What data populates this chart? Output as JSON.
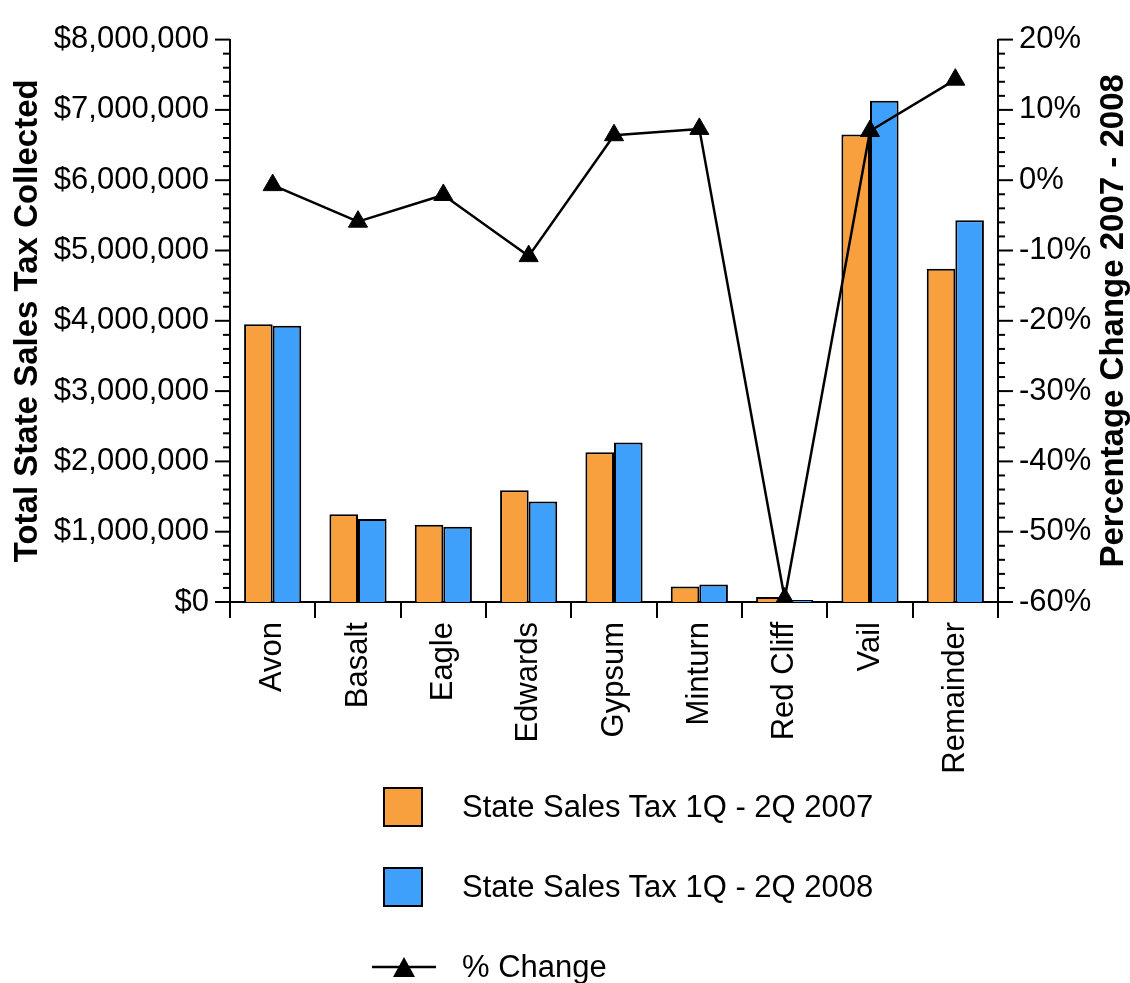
{
  "chart_data": {
    "type": "bar",
    "categories": [
      "Avon",
      "Basalt",
      "Eagle",
      "Edwards",
      "Gypsum",
      "Minturn",
      "Red Cliff",
      "Vail",
      "Remainder"
    ],
    "series": [
      {
        "name": "State Sales Tax 1Q - 2Q 2007",
        "color": "#f9a03e",
        "values": [
          3950000,
          1250000,
          1100000,
          1590000,
          2130000,
          220000,
          70000,
          6650000,
          4740000
        ]
      },
      {
        "name": "State Sales Tax 1Q - 2Q 2008",
        "color": "#3fa0fb",
        "values": [
          3930000,
          1180000,
          1070000,
          1430000,
          2270000,
          250000,
          30000,
          7130000,
          5430000
        ]
      },
      {
        "name": "% Change",
        "type": "line",
        "axis": "y2",
        "color": "#000000",
        "values": [
          -0.7,
          -5.9,
          -2.1,
          -10.8,
          6.4,
          7.3,
          -59.5,
          7.0,
          14.3
        ]
      }
    ],
    "ylabel": "Total State Sales Tax Collected",
    "y2label": "Percentage Change 2007 - 2008",
    "ylim": [
      0,
      8000000
    ],
    "yticks": [
      {
        "value": 0,
        "label": "$0"
      },
      {
        "value": 200000,
        "label": null
      },
      {
        "value": 400000,
        "label": null
      },
      {
        "value": 600000,
        "label": null
      },
      {
        "value": 800000,
        "label": null
      },
      {
        "value": 1000000,
        "label": "$1,000,000"
      },
      {
        "value": 1200000,
        "label": null
      },
      {
        "value": 1400000,
        "label": null
      },
      {
        "value": 1600000,
        "label": null
      },
      {
        "value": 1800000,
        "label": null
      },
      {
        "value": 2000000,
        "label": "$2,000,000"
      },
      {
        "value": 2200000,
        "label": null
      },
      {
        "value": 2400000,
        "label": null
      },
      {
        "value": 2600000,
        "label": null
      },
      {
        "value": 2800000,
        "label": null
      },
      {
        "value": 3000000,
        "label": "$3,000,000"
      },
      {
        "value": 3200000,
        "label": null
      },
      {
        "value": 3400000,
        "label": null
      },
      {
        "value": 3600000,
        "label": null
      },
      {
        "value": 3800000,
        "label": null
      },
      {
        "value": 4000000,
        "label": "$4,000,000"
      },
      {
        "value": 4200000,
        "label": null
      },
      {
        "value": 4400000,
        "label": null
      },
      {
        "value": 4600000,
        "label": null
      },
      {
        "value": 4800000,
        "label": null
      },
      {
        "value": 5000000,
        "label": "$5,000,000"
      },
      {
        "value": 5200000,
        "label": null
      },
      {
        "value": 5400000,
        "label": null
      },
      {
        "value": 5600000,
        "label": null
      },
      {
        "value": 5800000,
        "label": null
      },
      {
        "value": 6000000,
        "label": "$6,000,000"
      },
      {
        "value": 6200000,
        "label": null
      },
      {
        "value": 6400000,
        "label": null
      },
      {
        "value": 6600000,
        "label": null
      },
      {
        "value": 6800000,
        "label": null
      },
      {
        "value": 7000000,
        "label": "$7,000,000"
      },
      {
        "value": 7200000,
        "label": null
      },
      {
        "value": 7400000,
        "label": null
      },
      {
        "value": 7600000,
        "label": null
      },
      {
        "value": 7800000,
        "label": null
      },
      {
        "value": 8000000,
        "label": "$8,000,000"
      }
    ],
    "y2lim": [
      -60,
      20
    ],
    "y2ticks": [
      {
        "value": -60,
        "label": "-60%"
      },
      {
        "value": -58,
        "label": null
      },
      {
        "value": -56,
        "label": null
      },
      {
        "value": -54,
        "label": null
      },
      {
        "value": -52,
        "label": null
      },
      {
        "value": -50,
        "label": "-50%"
      },
      {
        "value": -48,
        "label": null
      },
      {
        "value": -46,
        "label": null
      },
      {
        "value": -44,
        "label": null
      },
      {
        "value": -42,
        "label": null
      },
      {
        "value": -40,
        "label": "-40%"
      },
      {
        "value": -38,
        "label": null
      },
      {
        "value": -36,
        "label": null
      },
      {
        "value": -34,
        "label": null
      },
      {
        "value": -32,
        "label": null
      },
      {
        "value": -30,
        "label": "-30%"
      },
      {
        "value": -28,
        "label": null
      },
      {
        "value": -26,
        "label": null
      },
      {
        "value": -24,
        "label": null
      },
      {
        "value": -22,
        "label": null
      },
      {
        "value": -20,
        "label": "-20%"
      },
      {
        "value": -18,
        "label": null
      },
      {
        "value": -16,
        "label": null
      },
      {
        "value": -14,
        "label": null
      },
      {
        "value": -12,
        "label": null
      },
      {
        "value": -10,
        "label": "-10%"
      },
      {
        "value": -8,
        "label": null
      },
      {
        "value": -6,
        "label": null
      },
      {
        "value": -4,
        "label": null
      },
      {
        "value": -2,
        "label": null
      },
      {
        "value": 0,
        "label": "0%"
      },
      {
        "value": 2,
        "label": null
      },
      {
        "value": 4,
        "label": null
      },
      {
        "value": 6,
        "label": null
      },
      {
        "value": 8,
        "label": null
      },
      {
        "value": 10,
        "label": "10%"
      },
      {
        "value": 12,
        "label": null
      },
      {
        "value": 14,
        "label": null
      },
      {
        "value": 16,
        "label": null
      },
      {
        "value": 18,
        "label": null
      },
      {
        "value": 20,
        "label": "20%"
      }
    ],
    "legend": "bottom",
    "marker": "triangle",
    "line_style": "solid",
    "grid": false
  }
}
